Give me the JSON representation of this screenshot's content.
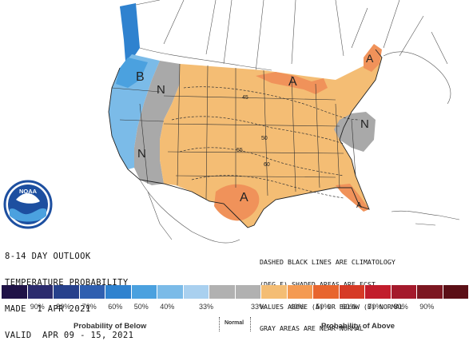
{
  "title_lines": [
    "8-14 DAY OUTLOOK",
    "TEMPERATURE PROBABILITY",
    "MADE  1 APR 2021",
    "VALID  APR 09 - 15, 2021"
  ],
  "note_lines": [
    "DASHED BLACK LINES ARE CLIMATOLOGY",
    "(DEG F) SHADED AREAS ARE FCST",
    "VALUES ABOVE (A) OR BELOW (B) NORMAL",
    "GRAY AREAS ARE NEAR-NORMAL"
  ],
  "logo_text": "NOAA",
  "map_labels": {
    "below": "B",
    "normal": "N",
    "above": "A"
  },
  "contour_labels": [
    "45",
    "50",
    "55",
    "60"
  ],
  "legend": {
    "below_colors": [
      "#1f1247",
      "#2c2c6e",
      "#27418c",
      "#2f5fb0",
      "#2f82cf",
      "#4ba1df",
      "#7bbbe8",
      "#a9d0ef"
    ],
    "normal_colors": [
      "#b1b1b1",
      "#b1b1b1"
    ],
    "above_colors": [
      "#f4bd74",
      "#f49a52",
      "#e8652e",
      "#d63a26",
      "#c21d2c",
      "#a41a2c",
      "#7c1721",
      "#5b0f16"
    ],
    "labels": [
      "90%",
      "80%",
      "70%",
      "60%",
      "50%",
      "40%",
      "33%",
      "33%",
      "40%",
      "50%",
      "60%",
      "70%",
      "80%",
      "90%"
    ],
    "below_title": "Probability of Below",
    "normal_title": "Normal",
    "above_title": "Probability of Above"
  },
  "colors": {
    "above_light": "#f4bd74",
    "above_mid": "#f0925a",
    "normal_gray": "#a9a9a9",
    "below_light": "#8ec3ea",
    "below_mid": "#5ea7e0"
  }
}
